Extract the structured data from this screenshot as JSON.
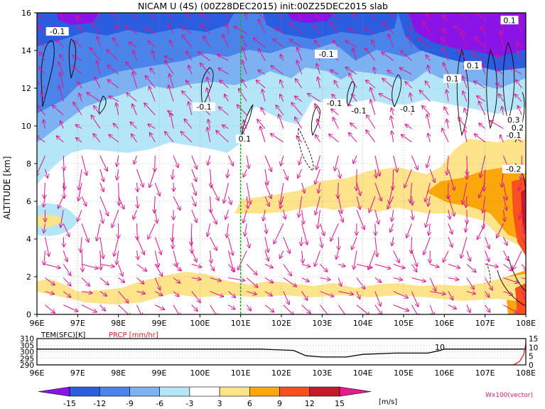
{
  "chart_data": [
    {
      "type": "heatmap",
      "title": "NICAM U (4S) (00Z28DEC2015) init:00Z25DEC2015 slab",
      "ylabel": "ALTITUDE [km]",
      "xlim": [
        96,
        108
      ],
      "ylim": [
        0,
        16
      ],
      "x_ticks": [
        "96E",
        "97E",
        "98E",
        "99E",
        "100E",
        "101E",
        "102E",
        "103E",
        "104E",
        "105E",
        "106E",
        "107E",
        "108E"
      ],
      "y_ticks": [
        "0",
        "2",
        "4",
        "6",
        "8",
        "10",
        "12",
        "14",
        "16"
      ],
      "grid": true,
      "marker_line_lon": 101,
      "contour_labels": [
        {
          "text": "-0.1",
          "lon": 96.5,
          "alt": 14.9
        },
        {
          "text": "-0.1",
          "lon": 103.1,
          "alt": 13.7
        },
        {
          "text": "-0.1",
          "lon": 100.1,
          "alt": 10.9
        },
        {
          "text": "-0.1",
          "lon": 103.3,
          "alt": 11.1
        },
        {
          "text": "-0.1",
          "lon": 103.9,
          "alt": 10.7
        },
        {
          "text": "-0.1",
          "lon": 105.1,
          "alt": 10.8
        },
        {
          "text": "0.1",
          "lon": 101.1,
          "alt": 9.2
        },
        {
          "text": "0.1",
          "lon": 106.2,
          "alt": 12.4
        },
        {
          "text": "0.1",
          "lon": 106.7,
          "alt": 13.1
        },
        {
          "text": "0.1",
          "lon": 107.6,
          "alt": 15.5
        },
        {
          "text": "-0.2",
          "lon": 107.7,
          "alt": 7.6
        },
        {
          "text": "0.3",
          "lon": 107.7,
          "alt": 10.2
        },
        {
          "text": "-0.1",
          "lon": 107.7,
          "alt": 9.4
        },
        {
          "text": "0.2",
          "lon": 107.8,
          "alt": 9.8
        }
      ]
    },
    {
      "type": "line",
      "series": [
        {
          "name": "TEM(SFC)[K]",
          "color": "#000000",
          "x": [
            96,
            101.5,
            102.3,
            102.6,
            103.0,
            103.6,
            104.0,
            104.8,
            105.6,
            105.9,
            106.0,
            108.0
          ],
          "values": [
            302,
            302,
            301,
            297,
            296,
            296,
            298,
            299,
            299,
            301,
            302,
            302
          ]
        },
        {
          "name": "PRCP [mm/hr]",
          "color": "#dd2222",
          "x": [
            96,
            107.7,
            107.85,
            107.95,
            108.0
          ],
          "values": [
            0,
            0,
            2,
            6,
            12
          ]
        }
      ],
      "y_ticks_left": [
        "290",
        "295",
        "300",
        "305",
        "310"
      ],
      "y_ticks_right": [
        "0",
        "5",
        "10",
        "15"
      ],
      "ylim_left": [
        290,
        310
      ],
      "ylim_right": [
        0,
        15
      ],
      "annotation": "10",
      "x_ticks": [
        "96E",
        "97E",
        "98E",
        "99E",
        "100E",
        "101E",
        "102E",
        "103E",
        "104E",
        "105E",
        "106E",
        "107E",
        "108E"
      ]
    }
  ],
  "colorbar": {
    "levels": [
      "-15",
      "-12",
      "-9",
      "-6",
      "-3",
      "3",
      "6",
      "9",
      "12",
      "15"
    ],
    "colors": [
      "#8a14e6",
      "#2a5de0",
      "#4a84ea",
      "#7cb2f2",
      "#b4e6f8",
      "#ffffff",
      "#fde38a",
      "#fba70c",
      "#fa4f1e",
      "#c41a2a",
      "#e81a8c"
    ],
    "unit": "[m/s]",
    "vector_label": "Wx100(vector)"
  }
}
